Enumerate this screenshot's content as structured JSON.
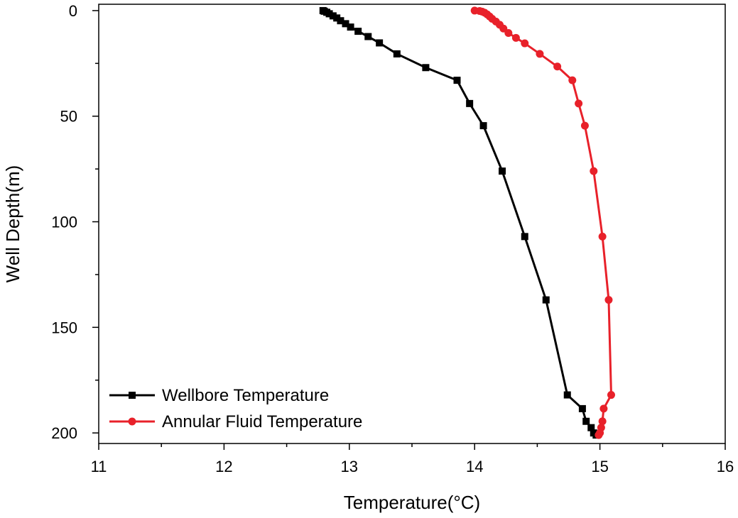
{
  "chart_data": {
    "type": "line",
    "title": "",
    "xlabel": "Temperature(°C)",
    "ylabel": "Well Depth(m)",
    "xlim": [
      11,
      16
    ],
    "ylim": [
      205,
      -3
    ],
    "y_inverted": true,
    "x_ticks": [
      11,
      12,
      13,
      14,
      15,
      16
    ],
    "x_tick_labels": [
      "11",
      "12",
      "13",
      "14",
      "15",
      "16"
    ],
    "y_ticks": [
      0,
      50,
      100,
      150,
      200
    ],
    "y_tick_labels": [
      "0",
      "50",
      "100",
      "150",
      "200"
    ],
    "grid": false,
    "legend_position": "bottom-left",
    "series": [
      {
        "name": "Wellbore Temperature",
        "color": "#000000",
        "marker": "square",
        "x": [
          12.79,
          12.8,
          12.82,
          12.84,
          12.87,
          12.9,
          12.93,
          12.97,
          13.01,
          13.07,
          13.15,
          13.24,
          13.38,
          13.61,
          13.86,
          13.96,
          14.07,
          14.22,
          14.4,
          14.57,
          14.74,
          14.86,
          14.89,
          14.93,
          14.95,
          14.97
        ],
        "y": [
          0,
          0.3,
          0.8,
          1.5,
          2.5,
          3.5,
          4.8,
          6.2,
          7.8,
          9.8,
          12.3,
          15.3,
          20.5,
          27,
          33,
          44,
          54.5,
          76,
          107,
          137,
          182,
          188.5,
          194.5,
          197.5,
          200,
          201
        ]
      },
      {
        "name": "Annular Fluid Temperature",
        "color": "#e8212a",
        "marker": "circle",
        "x": [
          14.0,
          14.04,
          14.06,
          14.08,
          14.1,
          14.12,
          14.14,
          14.17,
          14.2,
          14.23,
          14.27,
          14.33,
          14.4,
          14.52,
          14.66,
          14.78,
          14.83,
          14.88,
          14.95,
          15.02,
          15.07,
          15.09,
          15.03,
          15.02,
          15.01,
          15.0,
          14.99
        ],
        "y": [
          0,
          0.2,
          0.5,
          1,
          1.8,
          2.8,
          3.9,
          5.2,
          6.7,
          8.5,
          10.6,
          12.9,
          15.5,
          20.5,
          26.5,
          33,
          44,
          54.5,
          76,
          107,
          137,
          182,
          188.5,
          194.5,
          197.5,
          200,
          201
        ]
      }
    ]
  }
}
